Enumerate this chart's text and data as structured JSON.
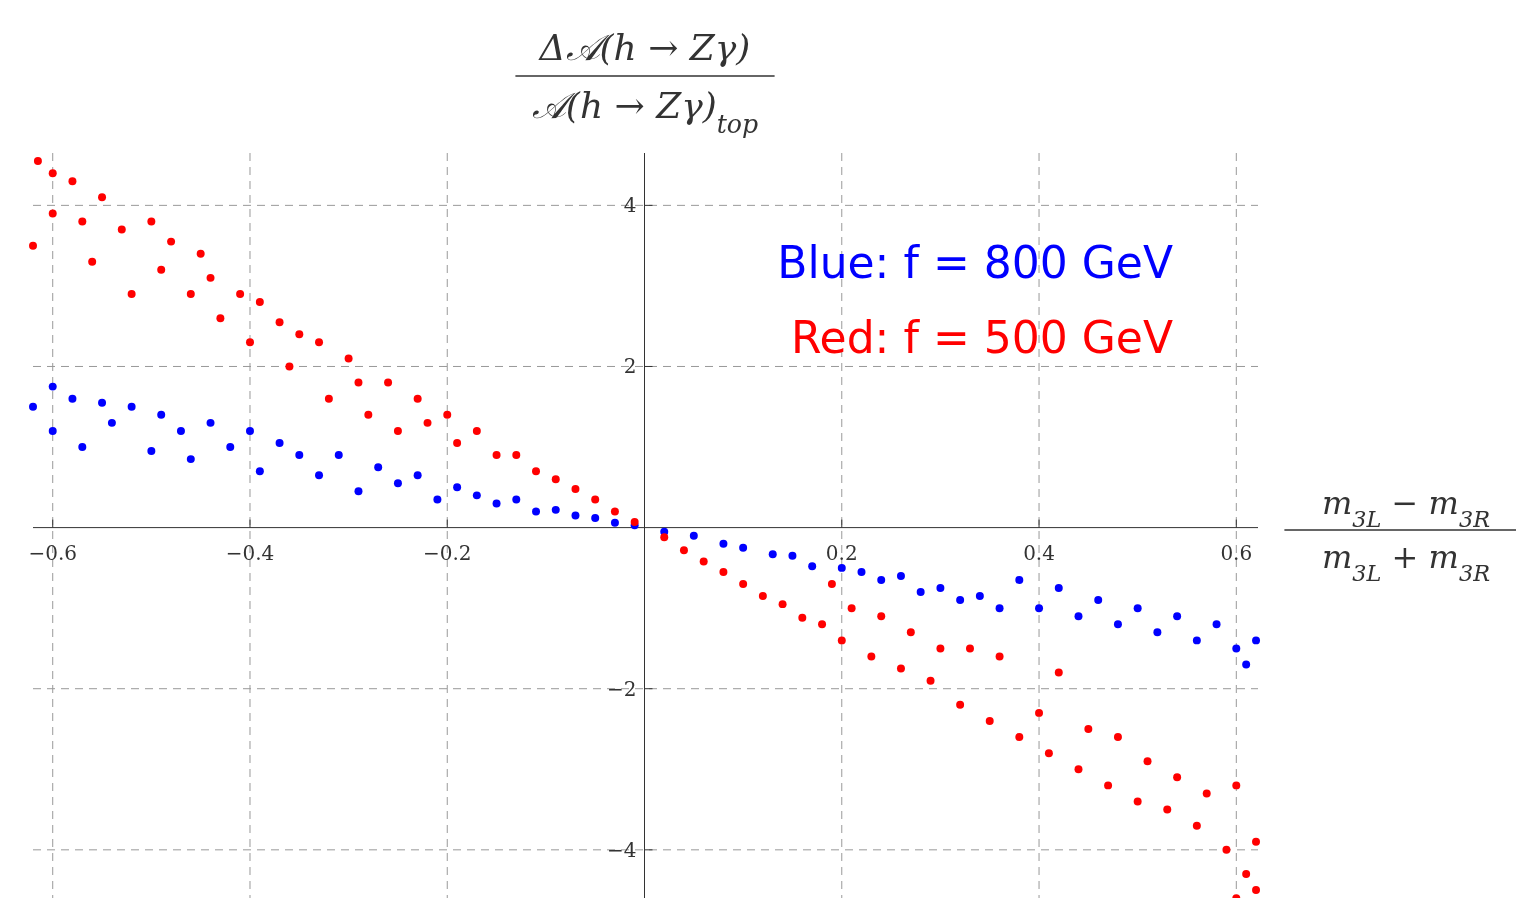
{
  "chart_data": {
    "type": "scatter",
    "ylabel": "Δ𝒜(h → Zγ)\n𝒜(h → Zγ)$_{top}$",
    "xlabel": "m$_{3L}$ − m$_{3R}$\nm$_{3L}$ + m$_{3R}$",
    "xlim": [
      -0.62,
      0.622
    ],
    "ylim": [
      -4.66,
      4.65
    ],
    "xticks": [
      {
        "value": -0.6,
        "label": "−0.6"
      },
      {
        "value": -0.4,
        "label": "−0.4"
      },
      {
        "value": -0.2,
        "label": "−0.2"
      },
      0.2,
      0.4,
      0.6
    ],
    "yticks": [
      {
        "value": -4,
        "label": "−4"
      },
      {
        "value": -2,
        "label": "−2"
      },
      2,
      4
    ],
    "grid": true,
    "legend": "top right",
    "marker": "circle",
    "series": [
      {
        "name": "Blue: f = 800 GeV",
        "color": "#0000ff",
        "x": [
          -0.62,
          -0.6,
          -0.6,
          -0.58,
          -0.57,
          -0.55,
          -0.54,
          -0.52,
          -0.5,
          -0.49,
          -0.47,
          -0.46,
          -0.44,
          -0.42,
          -0.4,
          -0.39,
          -0.37,
          -0.35,
          -0.33,
          -0.31,
          -0.29,
          -0.27,
          -0.25,
          -0.23,
          -0.21,
          -0.19,
          -0.17,
          -0.15,
          -0.13,
          -0.11,
          -0.09,
          -0.07,
          -0.05,
          -0.03,
          -0.01,
          0.02,
          0.05,
          0.08,
          0.1,
          0.13,
          0.15,
          0.17,
          0.2,
          0.22,
          0.24,
          0.26,
          0.28,
          0.3,
          0.32,
          0.34,
          0.36,
          0.38,
          0.4,
          0.42,
          0.44,
          0.46,
          0.48,
          0.5,
          0.52,
          0.54,
          0.56,
          0.58,
          0.6,
          0.61,
          0.62
        ],
        "values": [
          1.5,
          1.75,
          1.2,
          1.6,
          1.0,
          1.55,
          1.3,
          1.5,
          0.95,
          1.4,
          1.2,
          0.85,
          1.3,
          1.0,
          1.2,
          0.7,
          1.05,
          0.9,
          0.65,
          0.9,
          0.45,
          0.75,
          0.55,
          0.65,
          0.35,
          0.5,
          0.4,
          0.3,
          0.35,
          0.2,
          0.22,
          0.15,
          0.12,
          0.06,
          0.03,
          -0.05,
          -0.1,
          -0.2,
          -0.25,
          -0.33,
          -0.35,
          -0.48,
          -0.5,
          -0.55,
          -0.65,
          -0.6,
          -0.8,
          -0.75,
          -0.9,
          -0.85,
          -1.0,
          -0.65,
          -1.0,
          -0.75,
          -1.1,
          -0.9,
          -1.2,
          -1.0,
          -1.3,
          -1.1,
          -1.4,
          -1.2,
          -1.5,
          -1.7,
          -1.4
        ]
      },
      {
        "name": "Red: f = 500 GeV",
        "color": "#ff0000",
        "x": [
          -0.615,
          -0.6,
          -0.62,
          -0.6,
          -0.58,
          -0.57,
          -0.56,
          -0.55,
          -0.53,
          -0.52,
          -0.5,
          -0.49,
          -0.48,
          -0.46,
          -0.45,
          -0.44,
          -0.43,
          -0.41,
          -0.4,
          -0.39,
          -0.37,
          -0.36,
          -0.35,
          -0.33,
          -0.32,
          -0.3,
          -0.29,
          -0.28,
          -0.26,
          -0.25,
          -0.23,
          -0.22,
          -0.2,
          -0.19,
          -0.17,
          -0.15,
          -0.13,
          -0.11,
          -0.09,
          -0.07,
          -0.05,
          -0.03,
          -0.01,
          0.02,
          0.04,
          0.06,
          0.08,
          0.1,
          0.12,
          0.14,
          0.16,
          0.18,
          0.19,
          0.2,
          0.21,
          0.23,
          0.24,
          0.26,
          0.27,
          0.29,
          0.3,
          0.32,
          0.33,
          0.35,
          0.36,
          0.38,
          0.4,
          0.41,
          0.42,
          0.44,
          0.45,
          0.47,
          0.48,
          0.5,
          0.51,
          0.53,
          0.54,
          0.56,
          0.57,
          0.59,
          0.6,
          0.61,
          0.6,
          0.62,
          0.62
        ],
        "values": [
          4.55,
          4.4,
          3.5,
          3.9,
          4.3,
          3.8,
          3.3,
          4.1,
          3.7,
          2.9,
          3.8,
          3.2,
          3.55,
          2.9,
          3.4,
          3.1,
          2.6,
          2.9,
          2.3,
          2.8,
          2.55,
          2.0,
          2.4,
          2.3,
          1.6,
          2.1,
          1.8,
          1.4,
          1.8,
          1.2,
          1.6,
          1.3,
          1.4,
          1.05,
          1.2,
          0.9,
          0.9,
          0.7,
          0.6,
          0.48,
          0.35,
          0.2,
          0.07,
          -0.12,
          -0.28,
          -0.42,
          -0.55,
          -0.7,
          -0.85,
          -0.95,
          -1.12,
          -1.2,
          -0.7,
          -1.4,
          -1.0,
          -1.6,
          -1.1,
          -1.75,
          -1.3,
          -1.9,
          -1.5,
          -2.2,
          -1.5,
          -2.4,
          -1.6,
          -2.6,
          -2.3,
          -2.8,
          -1.8,
          -3.0,
          -2.5,
          -3.2,
          -2.6,
          -3.4,
          -2.9,
          -3.5,
          -3.1,
          -3.7,
          -3.3,
          -4.0,
          -3.2,
          -4.3,
          -4.6,
          -3.9,
          -4.5
        ]
      }
    ]
  }
}
